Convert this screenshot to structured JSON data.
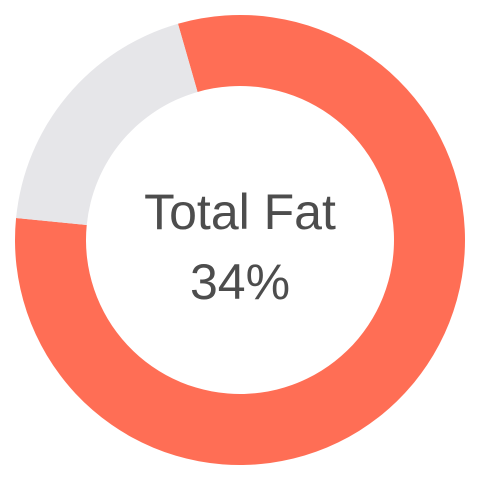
{
  "chart_data": {
    "type": "donut",
    "categories": [
      null,
      null
    ],
    "values": [
      81,
      19
    ],
    "colors": [
      "#ff6e55",
      "#e6e6e9"
    ],
    "center_text": [
      "Total Fat",
      "34%"
    ]
  }
}
